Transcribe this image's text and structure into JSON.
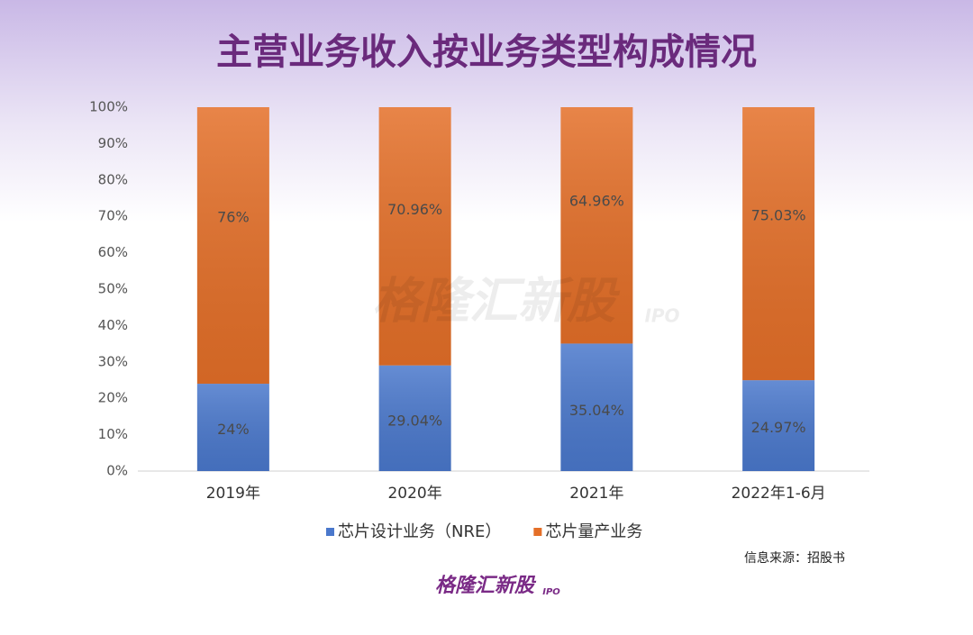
{
  "chart_data": {
    "type": "stacked_bar",
    "title": "主营业务收入按业务类型构成情况",
    "categories": [
      "2019年",
      "2020年",
      "2021年",
      "2022年1-6月"
    ],
    "series": [
      {
        "name": "芯片设计业务（NRE）",
        "color": "#4a78cc",
        "values": [
          24,
          29.04,
          35.04,
          24.97
        ],
        "value_labels": [
          "24%",
          "29.04%",
          "35.04%",
          "24.97%"
        ]
      },
      {
        "name": "芯片量产业务",
        "color": "#e46f28",
        "values": [
          76,
          70.96,
          64.96,
          75.03
        ],
        "value_labels": [
          "76%",
          "70.96%",
          "64.96%",
          "75.03%"
        ]
      }
    ],
    "ylim": [
      0,
      100
    ],
    "yticks": [
      {
        "value": 0,
        "label": "0%"
      },
      {
        "value": 10,
        "label": "10%"
      },
      {
        "value": 20,
        "label": "20%"
      },
      {
        "value": 30,
        "label": "30%"
      },
      {
        "value": 40,
        "label": "40%"
      },
      {
        "value": 50,
        "label": "50%"
      },
      {
        "value": 60,
        "label": "60%"
      },
      {
        "value": 70,
        "label": "70%"
      },
      {
        "value": 80,
        "label": "80%"
      },
      {
        "value": 90,
        "label": "90%"
      },
      {
        "value": 100,
        "label": "100%"
      }
    ],
    "legend": "bottom",
    "source": "信息来源：招股书",
    "watermark": "格隆汇新股",
    "watermark_tag": "IPO",
    "logo": "格隆汇新股",
    "logo_tag": "IPO"
  }
}
